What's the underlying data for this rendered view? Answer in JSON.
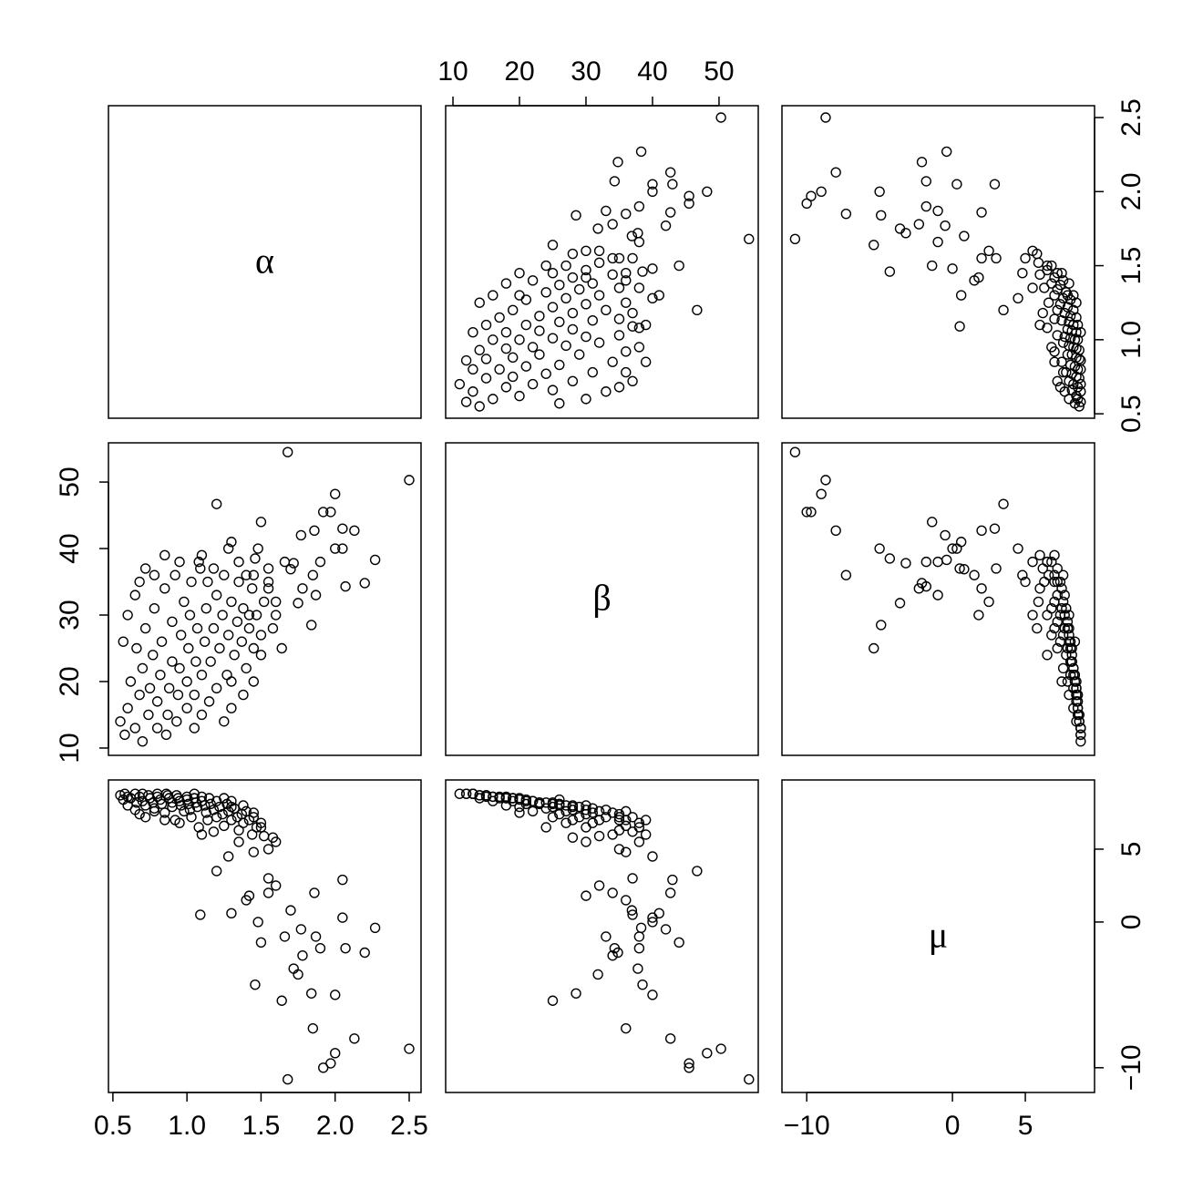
{
  "chart_data": {
    "type": "scatter-matrix",
    "variables": [
      {
        "name": "α",
        "lim": [
          0.47,
          2.58
        ],
        "ticks": [
          0.5,
          {
            "value": 1,
            "label": "1.0"
          },
          1.5,
          {
            "value": 2,
            "label": "2.0"
          },
          2.5
        ],
        "values": [
          0.55,
          0.58,
          0.6,
          0.62,
          0.65,
          0.66,
          0.68,
          0.7,
          0.7,
          0.72,
          0.74,
          0.75,
          0.77,
          0.78,
          0.8,
          0.8,
          0.82,
          0.83,
          0.85,
          0.86,
          0.87,
          0.88,
          0.9,
          0.9,
          0.92,
          0.93,
          0.94,
          0.95,
          0.96,
          0.98,
          1.0,
          1.0,
          1.01,
          1.02,
          1.03,
          1.05,
          1.05,
          1.06,
          1.07,
          1.08,
          1.1,
          1.1,
          1.12,
          1.13,
          1.14,
          1.15,
          1.16,
          1.18,
          1.2,
          1.2,
          1.22,
          1.24,
          1.25,
          1.27,
          1.28,
          1.3,
          1.32,
          1.34,
          1.35,
          1.37,
          1.38,
          1.4,
          1.42,
          1.44,
          1.45,
          1.47,
          1.5,
          1.52,
          1.38,
          1.3,
          1.25,
          1.45,
          0.6,
          0.65,
          0.72,
          0.68,
          0.57,
          1.55,
          1.6,
          1.45,
          1.35,
          1.28,
          1.5,
          1.58,
          1.18,
          1.1,
          0.95,
          0.85,
          0.78,
          1.3,
          2.5,
          1.68,
          2.0,
          2.27,
          2.2,
          2.13,
          1.92,
          1.97,
          2.0,
          2.05,
          2.07,
          1.85,
          1.9,
          1.78,
          1.75,
          1.72,
          1.66,
          1.7,
          1.87,
          1.77,
          1.84,
          1.46,
          1.64,
          1.5,
          1.2,
          1.6,
          1.86,
          1.55,
          1.09,
          1.3,
          1.4,
          1.55,
          1.42,
          2.05,
          1.48
        ]
      },
      {
        "name": "β",
        "lim": [
          8.9,
          55.9
        ],
        "ticks": [
          10,
          20,
          30,
          40,
          50
        ],
        "values": [
          14,
          12,
          16,
          20,
          13,
          25,
          18,
          11,
          22,
          28,
          15,
          19,
          24,
          31,
          13,
          17,
          21,
          26,
          34,
          12,
          15,
          19,
          23,
          29,
          36,
          14,
          18,
          22,
          27,
          32,
          16,
          20,
          25,
          30,
          35,
          13,
          18,
          23,
          28,
          38,
          15,
          21,
          26,
          31,
          35,
          17,
          23,
          28,
          33,
          19,
          25,
          30,
          36,
          21,
          27,
          32,
          24,
          29,
          35,
          26,
          31,
          22,
          28,
          34,
          25,
          30,
          27,
          32,
          18,
          16,
          14,
          20,
          30,
          33,
          37,
          35,
          26,
          35,
          30,
          36,
          38,
          40,
          24,
          28,
          37,
          39,
          38,
          39,
          36,
          20,
          50.3,
          54.5,
          48.2,
          38.3,
          34.8,
          42.7,
          45.5,
          45.5,
          40.0,
          40.0,
          34.3,
          36.0,
          38.0,
          34.0,
          31.8,
          37.8,
          38.0,
          36.9,
          33.0,
          42.0,
          28.5,
          38.5,
          25.0,
          44.0,
          46.7,
          32.0,
          42.7,
          37.0,
          37.0,
          41.0,
          36.0,
          34.0,
          30.0,
          43.0,
          40.0
        ]
      },
      {
        "name": "μ",
        "lim": [
          -11.7,
          9.75
        ],
        "ticks": [
          {
            "value": -10,
            "label": "−10"
          },
          0,
          5
        ],
        "values": [
          8.7,
          8.8,
          8.6,
          8.5,
          8.8,
          8.2,
          8.6,
          8.8,
          8.3,
          8.0,
          8.7,
          8.5,
          8.2,
          7.8,
          8.8,
          8.6,
          8.4,
          8.1,
          7.5,
          8.8,
          8.7,
          8.5,
          8.2,
          7.9,
          7.0,
          8.7,
          8.5,
          8.3,
          8.0,
          7.6,
          8.6,
          8.4,
          8.1,
          7.7,
          7.2,
          8.8,
          8.5,
          8.2,
          7.9,
          6.5,
          8.6,
          8.3,
          8.0,
          7.5,
          7.0,
          8.5,
          8.1,
          7.7,
          7.2,
          8.3,
          7.9,
          7.4,
          6.6,
          8.1,
          7.6,
          7.0,
          7.8,
          7.2,
          6.3,
          7.4,
          6.8,
          7.6,
          7.0,
          6.0,
          7.2,
          6.5,
          6.8,
          5.9,
          8.0,
          8.3,
          8.5,
          7.5,
          8.0,
          7.7,
          7.2,
          7.4,
          8.4,
          5.0,
          5.5,
          4.8,
          5.5,
          4.5,
          6.5,
          5.8,
          6.2,
          6.0,
          6.8,
          7.0,
          7.6,
          7.9,
          -8.7,
          -10.8,
          -9.0,
          -0.4,
          -2.1,
          -8.0,
          -10.0,
          -9.7,
          -5.0,
          0.3,
          -1.8,
          -7.3,
          -1.8,
          -2.3,
          -3.6,
          -3.2,
          -1.0,
          0.8,
          -1.0,
          -0.5,
          -4.9,
          -4.3,
          -5.4,
          -1.4,
          3.5,
          2.5,
          2.0,
          3.0,
          0.5,
          0.6,
          1.5,
          2.0,
          1.8,
          2.9,
          0.0
        ]
      }
    ]
  }
}
